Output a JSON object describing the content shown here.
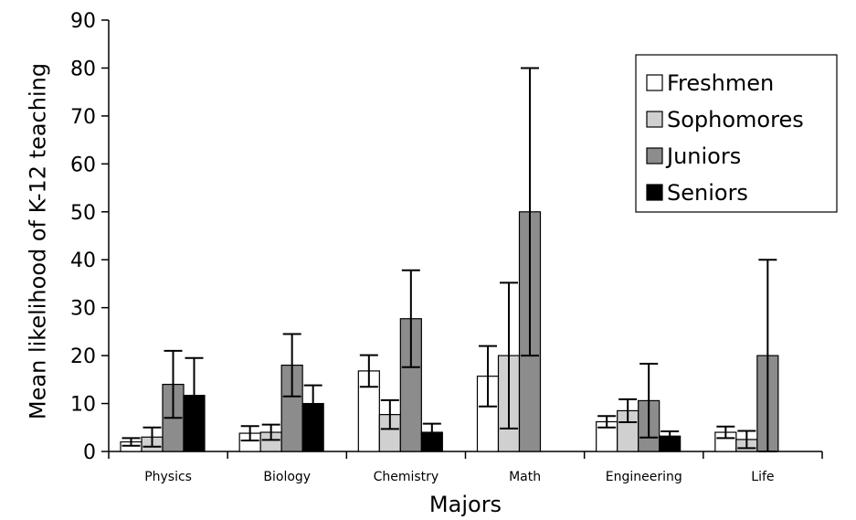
{
  "chart_data": {
    "type": "bar",
    "title": "",
    "xlabel": "Majors",
    "ylabel": "Mean likelihood of K-12 teaching",
    "ylim": [
      0,
      90
    ],
    "yticks": [
      "0",
      "10",
      "20",
      "30",
      "40",
      "50",
      "60",
      "70",
      "80",
      "90"
    ],
    "grid": false,
    "legend_position": "top-right",
    "categories": [
      "Physics",
      "Biology",
      "Chemistry",
      "Math",
      "Engineering",
      "Life"
    ],
    "series": [
      {
        "name": "Freshmen",
        "color": "#ffffff",
        "values": [
          2.0,
          3.8,
          16.8,
          15.7,
          6.2,
          4.0
        ],
        "error": [
          0.8,
          1.5,
          3.3,
          6.3,
          1.2,
          1.2
        ]
      },
      {
        "name": "Sophomores",
        "color": "#d0d0d0",
        "values": [
          3.0,
          4.0,
          7.7,
          20.0,
          8.5,
          2.5
        ],
        "error": [
          2.0,
          1.6,
          3.0,
          15.2,
          2.4,
          1.8
        ]
      },
      {
        "name": "Juniors",
        "color": "#8c8c8c",
        "values": [
          14.0,
          18.0,
          27.7,
          50.0,
          10.6,
          20.0
        ],
        "error": [
          7.0,
          6.5,
          10.1,
          30.0,
          7.7,
          20.0
        ]
      },
      {
        "name": "Seniors",
        "color": "#000000",
        "values": [
          11.7,
          10.0,
          4.0,
          0,
          3.2,
          0
        ],
        "error": [
          7.8,
          3.8,
          1.8,
          0,
          1.0,
          0
        ]
      }
    ]
  }
}
